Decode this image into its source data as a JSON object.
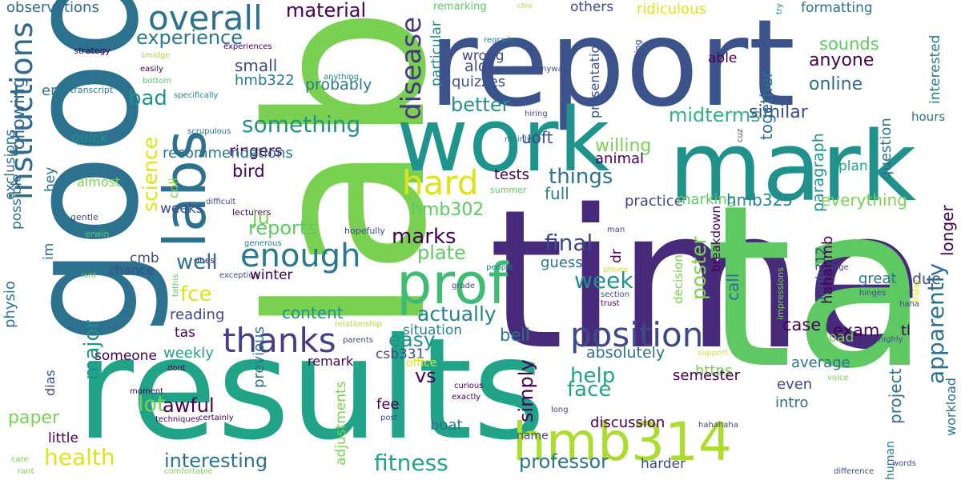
{
  "words": [
    {
      "text": "time",
      "color": "#472a7a"
    },
    {
      "text": "lab",
      "color": "#7ad151"
    },
    {
      "text": "report",
      "color": "#3b528b"
    },
    {
      "text": "results",
      "color": "#20a386"
    },
    {
      "text": "good",
      "color": "#2c728e"
    },
    {
      "text": "ta",
      "color": "#5ec962"
    },
    {
      "text": "mark",
      "color": "#21918c"
    },
    {
      "text": "work",
      "color": "#1f948c"
    },
    {
      "text": "labs",
      "color": "#2d718e"
    },
    {
      "text": "prof",
      "color": "#3fbc73"
    },
    {
      "text": "hmb314",
      "color": "#addc30"
    },
    {
      "text": "overall",
      "color": "#2c728e"
    },
    {
      "text": "instructions",
      "color": "#31688e"
    },
    {
      "text": "enough",
      "color": "#2a788e"
    },
    {
      "text": "position",
      "color": "#3e4989"
    },
    {
      "text": "thanks",
      "color": "#433e85"
    },
    {
      "text": "hard",
      "color": "#dde318"
    },
    {
      "text": "material",
      "color": "#440154"
    },
    {
      "text": "experience",
      "color": "#2a768e"
    },
    {
      "text": "observations",
      "color": "#31688e"
    },
    {
      "text": "disease",
      "color": "#453781"
    },
    {
      "text": "remarking",
      "color": "#5ec962"
    },
    {
      "text": "chio",
      "color": "#addc30"
    },
    {
      "text": "others",
      "color": "#3e4989"
    },
    {
      "text": "ridiculous",
      "color": "#dde318"
    },
    {
      "text": "formatting",
      "color": "#2c728e"
    },
    {
      "text": "try",
      "color": "#26828e"
    },
    {
      "text": "sounds",
      "color": "#5ec962"
    },
    {
      "text": "anyone",
      "color": "#440154"
    },
    {
      "text": "online",
      "color": "#31688e"
    },
    {
      "text": "interested",
      "color": "#2a788e"
    },
    {
      "text": "particular",
      "color": "#26828e"
    },
    {
      "text": "regrade",
      "color": "#2a788e"
    },
    {
      "text": "strategy",
      "color": "#440154"
    },
    {
      "text": "smidge",
      "color": "#addc30"
    },
    {
      "text": "experiences",
      "color": "#440154"
    },
    {
      "text": "easily",
      "color": "#440154"
    },
    {
      "text": "anything",
      "color": "#26828e"
    },
    {
      "text": "bottom",
      "color": "#5ec962"
    },
    {
      "text": "specifically",
      "color": "#26828e"
    },
    {
      "text": "transcript",
      "color": "#2a788e"
    },
    {
      "text": "hmb322",
      "color": "#2a788e"
    },
    {
      "text": "small",
      "color": "#3e4989"
    },
    {
      "text": "probably",
      "color": "#2a788e"
    },
    {
      "text": "alot",
      "color": "#3e4989"
    },
    {
      "text": "wrong",
      "color": "#3e4989"
    },
    {
      "text": "quizzes",
      "color": "#3b528b"
    },
    {
      "text": "presentation",
      "color": "#3b528b"
    },
    {
      "text": "meeting",
      "color": "#3e4989"
    },
    {
      "text": "anyways",
      "color": "#3e4989"
    },
    {
      "text": "bad",
      "color": "#21918c"
    },
    {
      "text": "end",
      "color": "#2c728e"
    },
    {
      "text": "following",
      "color": "#31688e"
    },
    {
      "text": "better",
      "color": "#21918c"
    },
    {
      "text": "midterms",
      "color": "#31b57b"
    },
    {
      "text": "similar",
      "color": "#3e4989"
    },
    {
      "text": "question",
      "color": "#2c728e"
    },
    {
      "text": "hours",
      "color": "#2c728e"
    },
    {
      "text": "together",
      "color": "#2c728e"
    },
    {
      "text": "paragraph",
      "color": "#21918c"
    },
    {
      "text": "able",
      "color": "#440154"
    },
    {
      "text": "something",
      "color": "#21918c"
    },
    {
      "text": "exclusions",
      "color": "#2c728e"
    },
    {
      "text": "quick",
      "color": "#21918c"
    },
    {
      "text": "ringers",
      "color": "#440154"
    },
    {
      "text": "science",
      "color": "#dde318"
    },
    {
      "text": "recommendations",
      "color": "#2c728e"
    },
    {
      "text": "scrupulous",
      "color": "#2c728e"
    },
    {
      "text": "uoft",
      "color": "#3e4989"
    },
    {
      "text": "willing",
      "color": "#7ad151"
    },
    {
      "text": "animal",
      "color": "#440154"
    },
    {
      "text": "mainly",
      "color": "#2a788e"
    },
    {
      "text": "hiring",
      "color": "#3e4989"
    },
    {
      "text": "cuz",
      "color": "#3e4989"
    },
    {
      "text": "plan",
      "color": "#20a386"
    },
    {
      "text": "bird",
      "color": "#440154"
    },
    {
      "text": "hey",
      "color": "#2c728e"
    },
    {
      "text": "almost",
      "color": "#7ad151"
    },
    {
      "text": "coli",
      "color": "#7ad151"
    },
    {
      "text": "lecturers",
      "color": "#440154"
    },
    {
      "text": "ju",
      "color": "#7ad151"
    },
    {
      "text": "things",
      "color": "#2c728e"
    },
    {
      "text": "tests",
      "color": "#440154"
    },
    {
      "text": "summer",
      "color": "#5ec962"
    },
    {
      "text": "full",
      "color": "#26828e"
    },
    {
      "text": "everything",
      "color": "#7ad151"
    },
    {
      "text": "longer",
      "color": "#440154"
    },
    {
      "text": "hmb302",
      "color": "#5ec962"
    },
    {
      "text": "weeks",
      "color": "#3e4989"
    },
    {
      "text": "difficult",
      "color": "#3e4989"
    },
    {
      "text": "practice",
      "color": "#3e4989"
    },
    {
      "text": "marking",
      "color": "#5ec962"
    },
    {
      "text": "hmb325",
      "color": "#26828e"
    },
    {
      "text": "possible",
      "color": "#2c728e"
    },
    {
      "text": "gentle",
      "color": "#3e4989"
    },
    {
      "text": "erwin",
      "color": "#5ec962"
    },
    {
      "text": "reports",
      "color": "#5ec962"
    },
    {
      "text": "hopefully",
      "color": "#3e4989"
    },
    {
      "text": "generous",
      "color": "#2a788e"
    },
    {
      "text": "marks",
      "color": "#440154"
    },
    {
      "text": "breakdown",
      "color": "#440154"
    },
    {
      "text": "hmb312",
      "color": "#3e4989"
    },
    {
      "text": "ones",
      "color": "#440154"
    },
    {
      "text": "plate",
      "color": "#5ec962"
    },
    {
      "text": "final",
      "color": "#3e4989"
    },
    {
      "text": "guess",
      "color": "#2c728e"
    },
    {
      "text": "man",
      "color": "#3e4989"
    },
    {
      "text": "people",
      "color": "#26828e"
    },
    {
      "text": "change",
      "color": "#3e4989"
    },
    {
      "text": "im",
      "color": "#31688e"
    },
    {
      "text": "isnt",
      "color": "#5ec962"
    },
    {
      "text": "cmb",
      "color": "#3e4989"
    },
    {
      "text": "chance",
      "color": "#3e4989"
    },
    {
      "text": "well",
      "color": "#2c728e"
    },
    {
      "text": "exception",
      "color": "#3e4989"
    },
    {
      "text": "winter",
      "color": "#440154"
    },
    {
      "text": "grade",
      "color": "#3e4989"
    },
    {
      "text": "week",
      "color": "#21918c"
    },
    {
      "text": "dr",
      "color": "#440154"
    },
    {
      "text": "decision",
      "color": "#7ad151"
    },
    {
      "text": "poster",
      "color": "#7ad151"
    },
    {
      "text": "hahahmb",
      "color": "#440154"
    },
    {
      "text": "great",
      "color": "#2c728e"
    },
    {
      "text": "due",
      "color": "#3e4989"
    },
    {
      "text": "impressions",
      "color": "#7ad151"
    },
    {
      "text": "friday",
      "color": "#dde318"
    },
    {
      "text": "haha",
      "color": "#3e4989"
    },
    {
      "text": "hinges",
      "color": "#3e4989"
    },
    {
      "text": "physio",
      "color": "#2c728e"
    },
    {
      "text": "tathis",
      "color": "#5ec962"
    },
    {
      "text": "phone",
      "color": "#dde318"
    },
    {
      "text": "trust",
      "color": "#440154"
    },
    {
      "text": "section",
      "color": "#3e4989"
    },
    {
      "text": "fce",
      "color": "#dde318"
    },
    {
      "text": "content",
      "color": "#21918c"
    },
    {
      "text": "call",
      "color": "#2c728e"
    },
    {
      "text": "reading",
      "color": "#3e4989"
    },
    {
      "text": "actually",
      "color": "#26828e"
    },
    {
      "text": "tas",
      "color": "#440154"
    },
    {
      "text": "relationship",
      "color": "#addc30"
    },
    {
      "text": "situation",
      "color": "#26828e"
    },
    {
      "text": "case",
      "color": "#440154"
    },
    {
      "text": "exam",
      "color": "#440154"
    },
    {
      "text": "tl",
      "color": "#440154"
    },
    {
      "text": "apparently",
      "color": "#2c728e"
    },
    {
      "text": "load",
      "color": "#7ad151"
    },
    {
      "text": "highly",
      "color": "#3e4989"
    },
    {
      "text": "someone",
      "color": "#440154"
    },
    {
      "text": "weekly",
      "color": "#20a386"
    },
    {
      "text": "easy",
      "color": "#21918c"
    },
    {
      "text": "bell",
      "color": "#2c728e"
    },
    {
      "text": "absolutely",
      "color": "#2c728e"
    },
    {
      "text": "support",
      "color": "#dde318"
    },
    {
      "text": "parents",
      "color": "#3e4989"
    },
    {
      "text": "csb331",
      "color": "#3e4989"
    },
    {
      "text": "office",
      "color": "#dde318"
    },
    {
      "text": "remark",
      "color": "#440154"
    },
    {
      "text": "dias",
      "color": "#3e4989"
    },
    {
      "text": "dont",
      "color": "#440154"
    },
    {
      "text": "major",
      "color": "#21918c"
    },
    {
      "text": "previous",
      "color": "#2c728e"
    },
    {
      "text": "adjustments",
      "color": "#7ad151"
    },
    {
      "text": "https",
      "color": "#7ad151"
    },
    {
      "text": "average",
      "color": "#2c728e"
    },
    {
      "text": "voice",
      "color": "#7ad151"
    },
    {
      "text": "workload",
      "color": "#2c728e"
    },
    {
      "text": "vs",
      "color": "#440154"
    },
    {
      "text": "simply",
      "color": "#440154"
    },
    {
      "text": "semester",
      "color": "#440154"
    },
    {
      "text": "even",
      "color": "#3e4989"
    },
    {
      "text": "project",
      "color": "#2c728e"
    },
    {
      "text": "moment",
      "color": "#440154"
    },
    {
      "text": "curious",
      "color": "#440154"
    },
    {
      "text": "help",
      "color": "#20a386"
    },
    {
      "text": "face",
      "color": "#20a386"
    },
    {
      "text": "intro",
      "color": "#2c728e"
    },
    {
      "text": "paper",
      "color": "#7ad151"
    },
    {
      "text": "lot",
      "color": "#7ad151"
    },
    {
      "text": "exactly",
      "color": "#440154"
    },
    {
      "text": "long",
      "color": "#3e4989"
    },
    {
      "text": "fee",
      "color": "#440154"
    },
    {
      "text": "post",
      "color": "#3e4989"
    },
    {
      "text": "boat",
      "color": "#2c728e"
    },
    {
      "text": "discussion",
      "color": "#440154"
    },
    {
      "text": "human",
      "color": "#2c728e"
    },
    {
      "text": "awful",
      "color": "#440154"
    },
    {
      "text": "certainly",
      "color": "#440154"
    },
    {
      "text": "little",
      "color": "#440154"
    },
    {
      "text": "techniques",
      "color": "#440154"
    },
    {
      "text": "name",
      "color": "#3e4989"
    },
    {
      "text": "hahahaha",
      "color": "#3e4989"
    },
    {
      "text": "words",
      "color": "#3e4989"
    },
    {
      "text": "health",
      "color": "#dde318"
    },
    {
      "text": "interesting",
      "color": "#2c728e"
    },
    {
      "text": "fitness",
      "color": "#20a386"
    },
    {
      "text": "professor",
      "color": "#2c728e"
    },
    {
      "text": "harder",
      "color": "#3e4989"
    },
    {
      "text": "care",
      "color": "#7ad151"
    },
    {
      "text": "rant",
      "color": "#7ad151"
    },
    {
      "text": "comfortable",
      "color": "#7ad151"
    },
    {
      "text": "difference",
      "color": "#3e4989"
    }
  ]
}
